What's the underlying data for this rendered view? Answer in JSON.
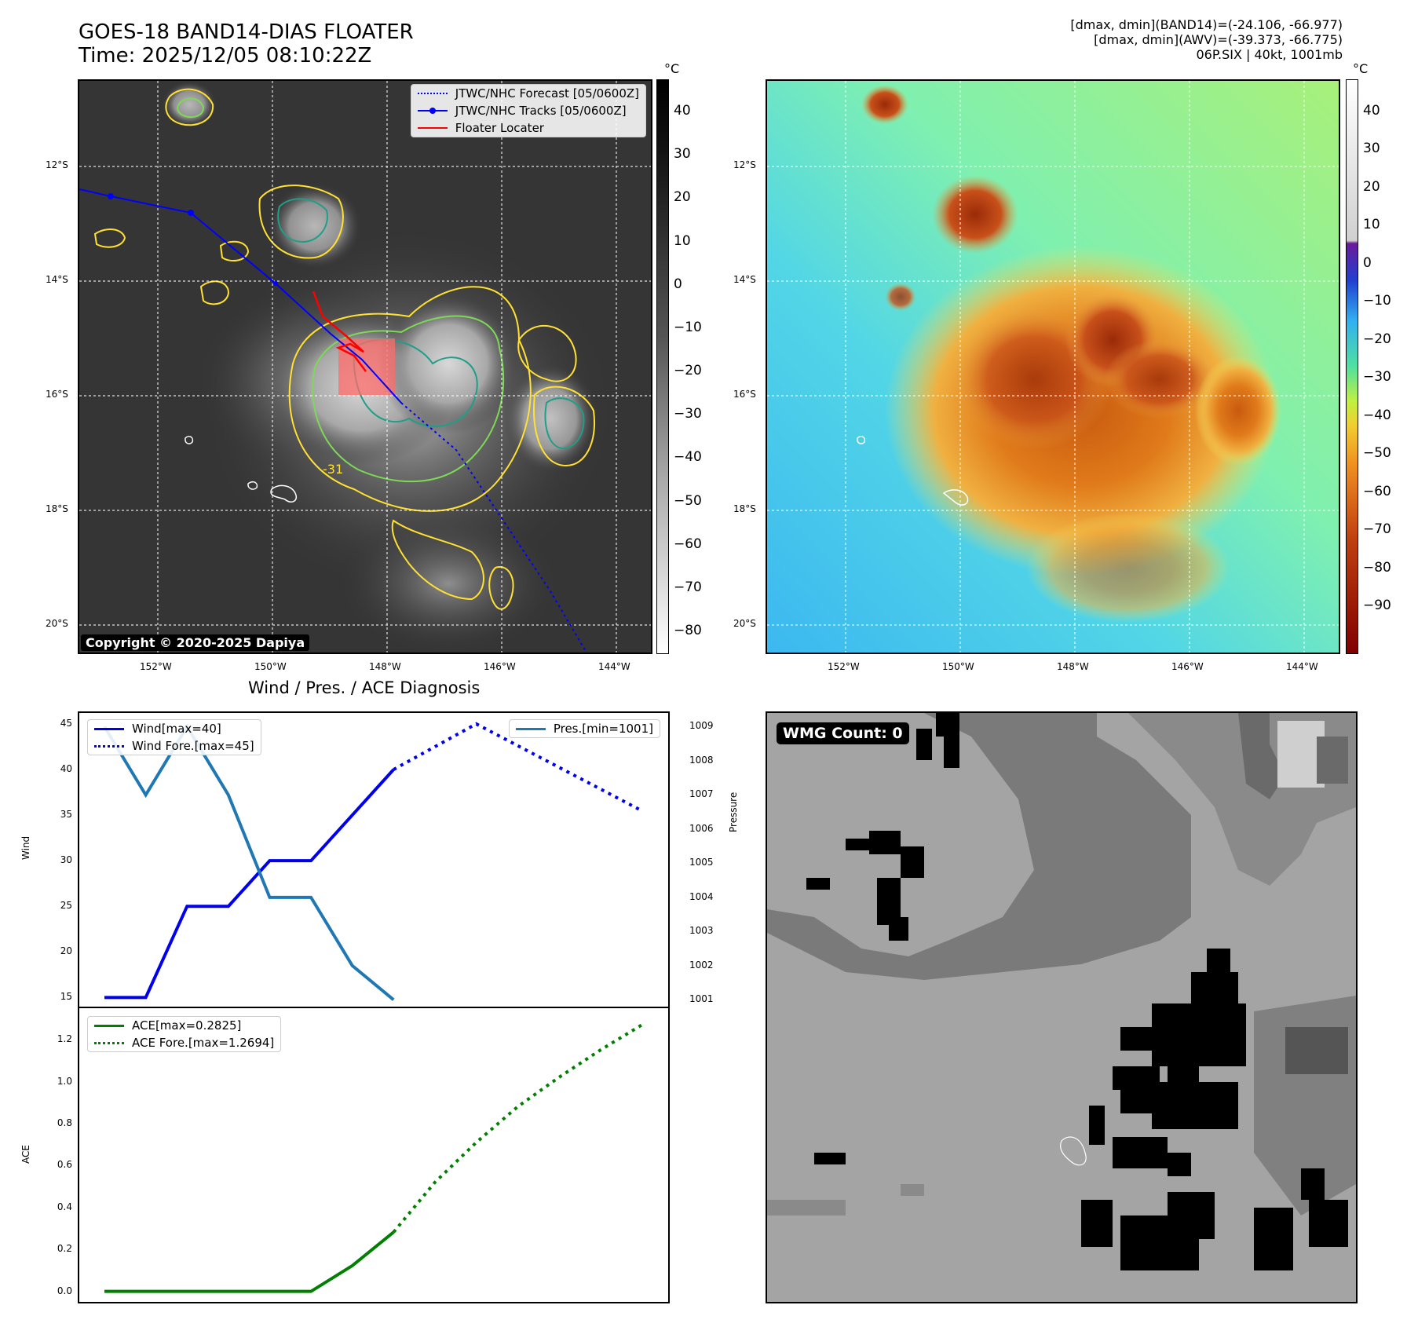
{
  "header": {
    "title_line1": "GOES-18 BAND14-DIAS FLOATER",
    "title_line2": "Time: 2025/12/05 08:10:22Z",
    "info_line1": "[dmax, dmin](BAND14)=(-24.106, -66.977)",
    "info_line2": "[dmax, dmin](AWV)=(-39.373, -66.775)",
    "info_line3": "06P.SIX | 40kt, 1001mb"
  },
  "colors": {
    "track": "#0000ff",
    "forecast": "#0000ff",
    "locater": "#ff0000",
    "wind": "#0000ee",
    "pressure": "#1f77b4",
    "ace": "#008000",
    "contour_yellow": "#ffe033",
    "contour_green": "#7ed957",
    "contour_teal": "#1f9e89"
  },
  "map": {
    "lat_labels": [
      "12°S",
      "14°S",
      "16°S",
      "18°S",
      "20°S"
    ],
    "lon_labels": [
      "152°W",
      "150°W",
      "148°W",
      "146°W",
      "144°W"
    ],
    "legend": {
      "forecast": "JTWC/NHC Forecast [05/0600Z]",
      "tracks": "JTWC/NHC Tracks [05/0600Z]",
      "locater": "Floater Locater"
    },
    "copyright": "Copyright © 2020-2025 Dapiya",
    "contour_label": "-31",
    "gray_colorbar": {
      "unit": "°C",
      "ticks": [
        "40",
        "30",
        "20",
        "10",
        "0",
        "−10",
        "−20",
        "−30",
        "−40",
        "−50",
        "−60",
        "−70",
        "−80"
      ]
    },
    "color_colorbar": {
      "unit": "°C",
      "ticks": [
        "40",
        "30",
        "20",
        "10",
        "0",
        "−10",
        "−20",
        "−30",
        "−40",
        "−50",
        "−60",
        "−70",
        "−80",
        "−90"
      ]
    }
  },
  "wmg": {
    "label": "WMG Count: 0"
  },
  "chart_data": [
    {
      "type": "line",
      "title": "Wind / Pres. / ACE Diagnosis",
      "ylabel": "Wind",
      "y2label": "Pressure",
      "ylim": [
        14,
        46.2
      ],
      "y2lim": [
        1000.8,
        1009.4
      ],
      "yticks": [
        "15",
        "20",
        "25",
        "30",
        "35",
        "40",
        "45"
      ],
      "y2ticks": [
        "1001",
        "1002",
        "1003",
        "1004",
        "1005",
        "1006",
        "1007",
        "1008",
        "1009"
      ],
      "series": [
        {
          "name": "Wind[max=40]",
          "axis": "left",
          "style": "solid",
          "x": [
            0,
            1,
            2,
            3,
            4,
            5,
            6,
            7
          ],
          "values": [
            15,
            15,
            25,
            25,
            30,
            30,
            35,
            40
          ]
        },
        {
          "name": "Wind Fore.[max=45]",
          "axis": "left",
          "style": "dotted",
          "x": [
            7,
            9,
            13
          ],
          "values": [
            40,
            45,
            35.5
          ]
        },
        {
          "name": "Pres.[min=1001]",
          "axis": "right",
          "style": "solid",
          "x": [
            0,
            1,
            2,
            3,
            4,
            5,
            6,
            7
          ],
          "values": [
            1009,
            1007,
            1009,
            1007,
            1004,
            1004,
            1002,
            1001
          ]
        }
      ]
    },
    {
      "type": "line",
      "ylabel": "ACE",
      "ylim": [
        -0.05,
        1.35
      ],
      "yticks": [
        "0.0",
        "0.2",
        "0.4",
        "0.6",
        "0.8",
        "1.0",
        "1.2"
      ],
      "series": [
        {
          "name": "ACE[max=0.2825]",
          "style": "solid",
          "x": [
            0,
            1,
            2,
            3,
            4,
            5,
            6,
            7
          ],
          "values": [
            0,
            0,
            0,
            0,
            0,
            0,
            0.1225,
            0.2825
          ]
        },
        {
          "name": "ACE Fore.[max=1.2694]",
          "style": "dotted",
          "x": [
            7,
            8,
            9,
            10,
            11,
            12,
            13
          ],
          "values": [
            0.2825,
            0.52,
            0.71,
            0.88,
            1.02,
            1.15,
            1.2694
          ]
        }
      ]
    }
  ]
}
